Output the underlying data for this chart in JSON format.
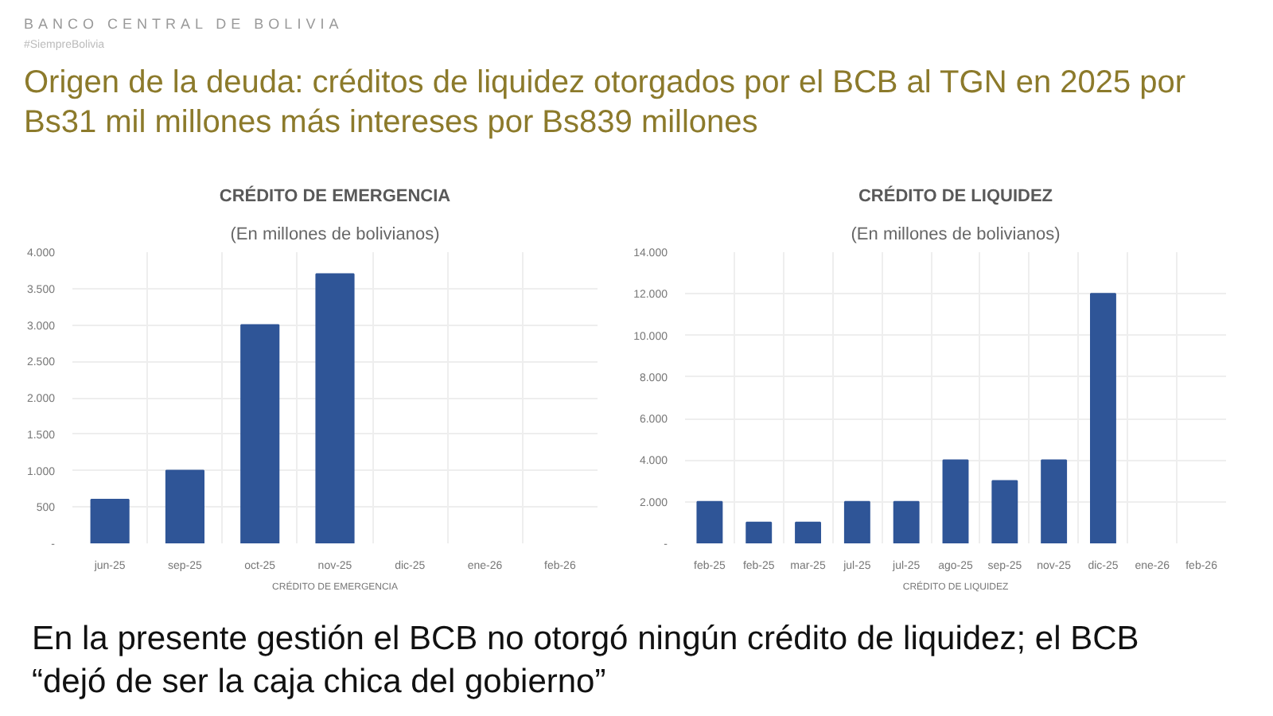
{
  "chart_data": [
    {
      "type": "bar",
      "title": "CRÉDITO DE EMERGENCIA",
      "subtitle": "(En millones de bolivianos)",
      "xlabel": "CRÉDITO DE EMERGENCIA",
      "annotations": [
        "BANCO CENTRAL DE BOLIVIA",
        "#SiempreBolivia",
        "Origen de la deuda: créditos de liquidez otorgados por el BCB al TGN en 2025 por Bs31 mil millones más intereses por Bs839 millones"
      ],
      "categories": [
        "jun-25",
        "sep-25",
        "oct-25",
        "nov-25",
        "dic-25",
        "ene-26",
        "feb-26"
      ],
      "values": [
        600,
        1000,
        3000,
        3700,
        null,
        null,
        null
      ],
      "color": "#2f5597",
      "ylim": [
        0,
        4000
      ],
      "yticks": [
        {
          "value": 0,
          "label": "-"
        },
        {
          "value": 500,
          "label": "500"
        },
        {
          "value": 1000,
          "label": "1.000"
        },
        {
          "value": 1500,
          "label": "1.500"
        },
        {
          "value": 2000,
          "label": "2.000"
        },
        {
          "value": 2500,
          "label": "2.500"
        },
        {
          "value": 3000,
          "label": "3.000"
        },
        {
          "value": 3500,
          "label": "3.500"
        },
        {
          "value": 4000,
          "label": "4.000"
        }
      ],
      "grid": true
    },
    {
      "type": "bar",
      "title": "CRÉDITO DE LIQUIDEZ",
      "subtitle": "(En millones de bolivianos)",
      "xlabel": "CRÉDITO DE LIQUIDEZ",
      "annotations": [
        "En la presente gestión el BCB no otorgó ningún crédito de liquidez; el BCB “dejó de ser la caja chica del gobierno”"
      ],
      "categories": [
        "feb-25",
        "feb-25",
        "mar-25",
        "jul-25",
        "jul-25",
        "ago-25",
        "sep-25",
        "nov-25",
        "dic-25",
        "ene-26",
        "feb-26"
      ],
      "values": [
        2000,
        1000,
        1000,
        2000,
        2000,
        4000,
        3000,
        4000,
        12000,
        null,
        null
      ],
      "color": "#2f5597",
      "ylim": [
        0,
        14000
      ],
      "yticks": [
        {
          "value": 0,
          "label": "-"
        },
        {
          "value": 2000,
          "label": "2.000"
        },
        {
          "value": 4000,
          "label": "4.000"
        },
        {
          "value": 6000,
          "label": "6.000"
        },
        {
          "value": 8000,
          "label": "8.000"
        },
        {
          "value": 10000,
          "label": "10.000"
        },
        {
          "value": 12000,
          "label": "12.000"
        },
        {
          "value": 14000,
          "label": "14.000"
        }
      ],
      "grid": true
    }
  ]
}
